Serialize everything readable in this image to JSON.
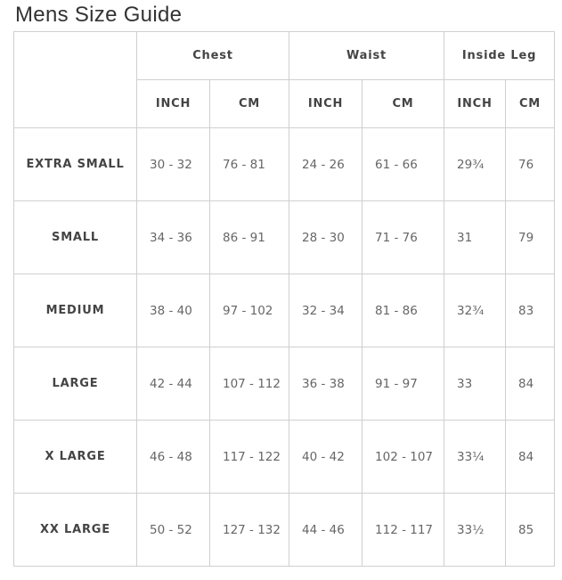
{
  "title": "Mens Size Guide",
  "groups": [
    "Chest",
    "Waist",
    "Inside Leg"
  ],
  "units": [
    "INCH",
    "CM",
    "INCH",
    "CM",
    "INCH",
    "CM"
  ],
  "rows": [
    {
      "size": "EXTRA SMALL",
      "values": [
        "30 - 32",
        "76 - 81",
        "24 - 26",
        "61 - 66",
        "29¾",
        "76"
      ]
    },
    {
      "size": "SMALL",
      "values": [
        "34 - 36",
        "86 - 91",
        "28 - 30",
        "71 - 76",
        "31",
        "79"
      ]
    },
    {
      "size": "MEDIUM",
      "values": [
        "38 - 40",
        "97 - 102",
        "32 - 34",
        "81 - 86",
        "32¾",
        "83"
      ]
    },
    {
      "size": "LARGE",
      "values": [
        "42 - 44",
        "107 - 112",
        "36 - 38",
        "91 - 97",
        "33",
        "84"
      ]
    },
    {
      "size": "X LARGE",
      "values": [
        "46 - 48",
        "117 - 122",
        "40 - 42",
        "102 - 107",
        "33¼",
        "84"
      ]
    },
    {
      "size": "XX LARGE",
      "values": [
        "50 - 52",
        "127 - 132",
        "44 - 46",
        "112 - 117",
        "33½",
        "85"
      ]
    }
  ]
}
